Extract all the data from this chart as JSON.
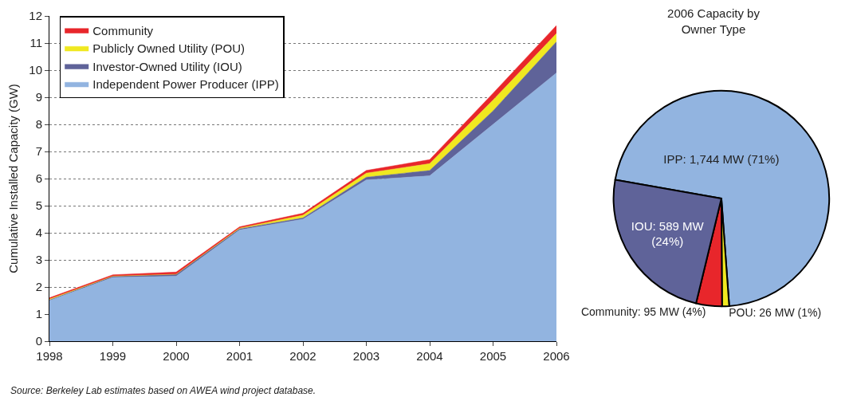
{
  "chart_data": [
    {
      "type": "area",
      "stacked": true,
      "ylabel": "Cumulative Installed Capacity (GW)",
      "x": [
        1998,
        1999,
        2000,
        2001,
        2002,
        2003,
        2004,
        2005,
        2006
      ],
      "xlim": [
        1998,
        2006
      ],
      "xticks": [
        1998,
        1999,
        2000,
        2001,
        2002,
        2003,
        2004,
        2005,
        2006
      ],
      "ylim": [
        0,
        12
      ],
      "yticks": [
        0,
        1,
        2,
        3,
        4,
        5,
        6,
        7,
        8,
        9,
        10,
        11,
        12
      ],
      "grid": "y",
      "legend": "top left",
      "series": [
        {
          "name": "Independent Power Producer (IPP)",
          "color": "#92b4e0",
          "values": [
            1.5,
            2.35,
            2.4,
            4.1,
            4.5,
            5.95,
            6.1,
            8.0,
            9.9
          ]
        },
        {
          "name": "Investor-Owned Utility (IOU)",
          "color": "#5f6399",
          "values": [
            0.02,
            0.05,
            0.07,
            0.05,
            0.05,
            0.1,
            0.2,
            0.5,
            1.15
          ]
        },
        {
          "name": "Publicly Owned Utility (POU)",
          "color": "#f0e820",
          "values": [
            0.03,
            0.0,
            0.0,
            0.02,
            0.1,
            0.15,
            0.25,
            0.4,
            0.3
          ]
        },
        {
          "name": "Community",
          "color": "#e8262b",
          "values": [
            0.05,
            0.05,
            0.08,
            0.05,
            0.07,
            0.1,
            0.15,
            0.25,
            0.3
          ]
        }
      ],
      "annotations": [
        "Source: Berkeley Lab estimates based on AWEA wind project database."
      ]
    },
    {
      "type": "pie",
      "title": "2006 Capacity by\nOwner Type",
      "categories": [
        "IPP",
        "POU",
        "Community",
        "IOU"
      ],
      "values": [
        1744,
        26,
        95,
        589
      ],
      "colors": [
        "#92b4e0",
        "#f0e820",
        "#e8262b",
        "#5f6399"
      ],
      "value_labels": [
        "1,744 MW (71%)",
        "26 MW (1%)",
        "95 MW (4%)",
        "589 MW (24%)"
      ]
    }
  ]
}
